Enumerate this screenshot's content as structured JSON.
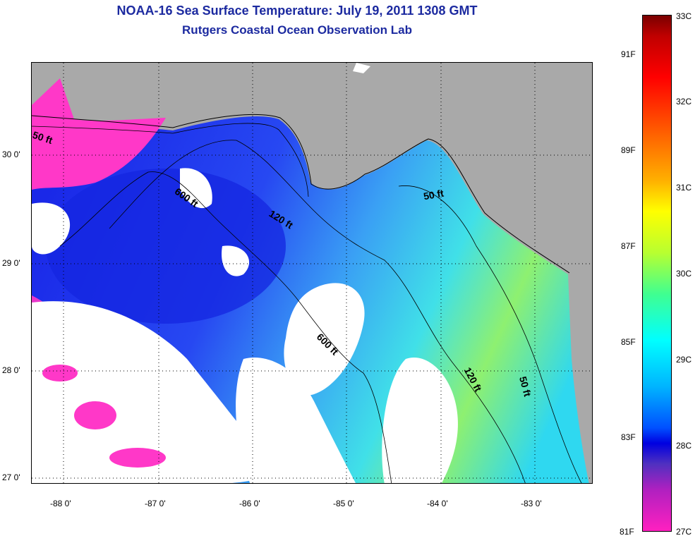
{
  "header": {
    "title": "NOAA-16 Sea Surface Temperature:  July 19, 2011 1308 GMT",
    "subtitle": "Rutgers Coastal Ocean Observation Lab"
  },
  "map": {
    "lon_labels": [
      "-88 0'",
      "-87 0'",
      "-86 0'",
      "-85 0'",
      "-84 0'",
      "-83 0'"
    ],
    "lat_labels": [
      "30 0'",
      "29 0'",
      "28 0'",
      "27 0'"
    ],
    "contour_labels": [
      "50 ft",
      "600 ft",
      "120 ft",
      "50 ft",
      "600 ft",
      "120 ft",
      "50 ft"
    ],
    "colors": {
      "land": "#a9a9a9",
      "cloud": "#ffffff",
      "warm_pink": "#ff38c8",
      "cool_blue": "#1a2ef0",
      "mid_blue": "#3a7af5",
      "cyan": "#25d8f0",
      "green": "#8cf060"
    }
  },
  "colorbar": {
    "celsius_labels": [
      "33C",
      "32C",
      "31C",
      "30C",
      "29C",
      "28C",
      "27C"
    ],
    "fahrenheit_labels": [
      "91F",
      "89F",
      "87F",
      "85F",
      "83F",
      "81F"
    ]
  }
}
